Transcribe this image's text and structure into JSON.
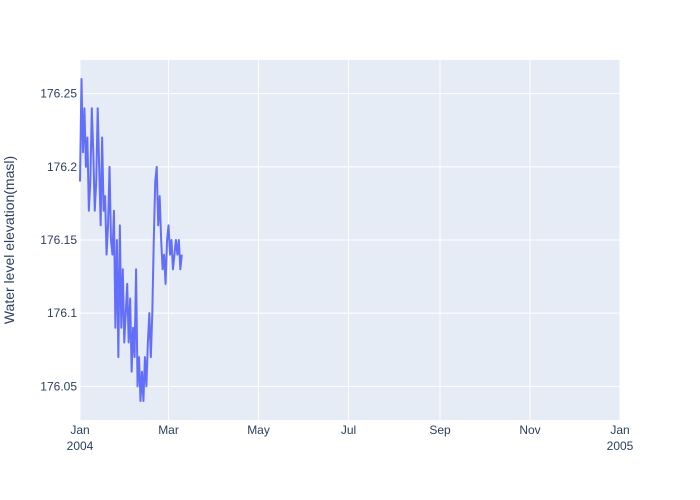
{
  "chart_data": {
    "type": "line",
    "title": "",
    "xlabel": "",
    "ylabel": "Water level elevation(masl)",
    "x_axis_type": "date",
    "xlim": [
      "2004-01-01",
      "2005-01-01"
    ],
    "ylim": [
      176.027,
      176.273
    ],
    "grid": true,
    "legend": "none",
    "colors": {
      "line": "#636efa",
      "plot_bg": "#e5ecf6",
      "grid": "#ffffff",
      "text": "#2a3f5f"
    },
    "x_ticks": [
      {
        "value": "2004-01-01",
        "label": "Jan",
        "sublabel": "2004"
      },
      {
        "value": "2004-03-01",
        "label": "Mar",
        "sublabel": ""
      },
      {
        "value": "2004-05-01",
        "label": "May",
        "sublabel": ""
      },
      {
        "value": "2004-07-01",
        "label": "Jul",
        "sublabel": ""
      },
      {
        "value": "2004-09-01",
        "label": "Sep",
        "sublabel": ""
      },
      {
        "value": "2004-11-01",
        "label": "Nov",
        "sublabel": ""
      },
      {
        "value": "2005-01-01",
        "label": "Jan",
        "sublabel": "2005"
      }
    ],
    "y_ticks": [
      {
        "value": 176.05,
        "label": "176.05"
      },
      {
        "value": 176.1,
        "label": "176.1"
      },
      {
        "value": 176.15,
        "label": "176.15"
      },
      {
        "value": 176.2,
        "label": "176.2"
      },
      {
        "value": 176.25,
        "label": "176.25"
      }
    ],
    "series": [
      {
        "x": [
          "2004-01-01",
          "2004-01-02",
          "2004-01-03",
          "2004-01-04",
          "2004-01-05",
          "2004-01-06",
          "2004-01-07",
          "2004-01-08",
          "2004-01-09",
          "2004-01-10",
          "2004-01-11",
          "2004-01-12",
          "2004-01-13",
          "2004-01-14",
          "2004-01-15",
          "2004-01-16",
          "2004-01-17",
          "2004-01-18",
          "2004-01-19",
          "2004-01-20",
          "2004-01-21",
          "2004-01-22",
          "2004-01-23",
          "2004-01-24",
          "2004-01-25",
          "2004-01-26",
          "2004-01-27",
          "2004-01-28",
          "2004-01-29",
          "2004-01-30",
          "2004-01-31",
          "2004-02-01",
          "2004-02-02",
          "2004-02-03",
          "2004-02-04",
          "2004-02-05",
          "2004-02-06",
          "2004-02-07",
          "2004-02-08",
          "2004-02-09",
          "2004-02-10",
          "2004-02-11",
          "2004-02-12",
          "2004-02-13",
          "2004-02-14",
          "2004-02-15",
          "2004-02-16",
          "2004-02-17",
          "2004-02-18",
          "2004-02-19",
          "2004-02-20",
          "2004-02-21",
          "2004-02-22",
          "2004-02-23",
          "2004-02-24",
          "2004-02-25",
          "2004-02-26",
          "2004-02-27",
          "2004-02-28",
          "2004-02-29",
          "2004-03-01",
          "2004-03-02",
          "2004-03-03",
          "2004-03-04",
          "2004-03-05",
          "2004-03-06",
          "2004-03-07",
          "2004-03-08",
          "2004-03-09",
          "2004-03-10"
        ],
        "values": [
          176.19,
          176.26,
          176.21,
          176.24,
          176.2,
          176.22,
          176.17,
          176.19,
          176.24,
          176.21,
          176.17,
          176.19,
          176.24,
          176.2,
          176.16,
          176.22,
          176.17,
          176.18,
          176.14,
          176.16,
          176.2,
          176.15,
          176.14,
          176.17,
          176.09,
          176.15,
          176.07,
          176.16,
          176.09,
          176.13,
          176.08,
          176.1,
          176.12,
          176.08,
          176.11,
          176.06,
          176.09,
          176.07,
          176.13,
          176.05,
          176.07,
          176.04,
          176.06,
          176.04,
          176.07,
          176.05,
          176.08,
          176.1,
          176.07,
          176.1,
          176.15,
          176.19,
          176.2,
          176.16,
          176.18,
          176.15,
          176.13,
          176.14,
          176.12,
          176.15,
          176.16,
          176.14,
          176.15,
          176.13,
          176.14,
          176.15,
          176.14,
          176.15,
          176.13,
          176.14
        ]
      }
    ]
  }
}
